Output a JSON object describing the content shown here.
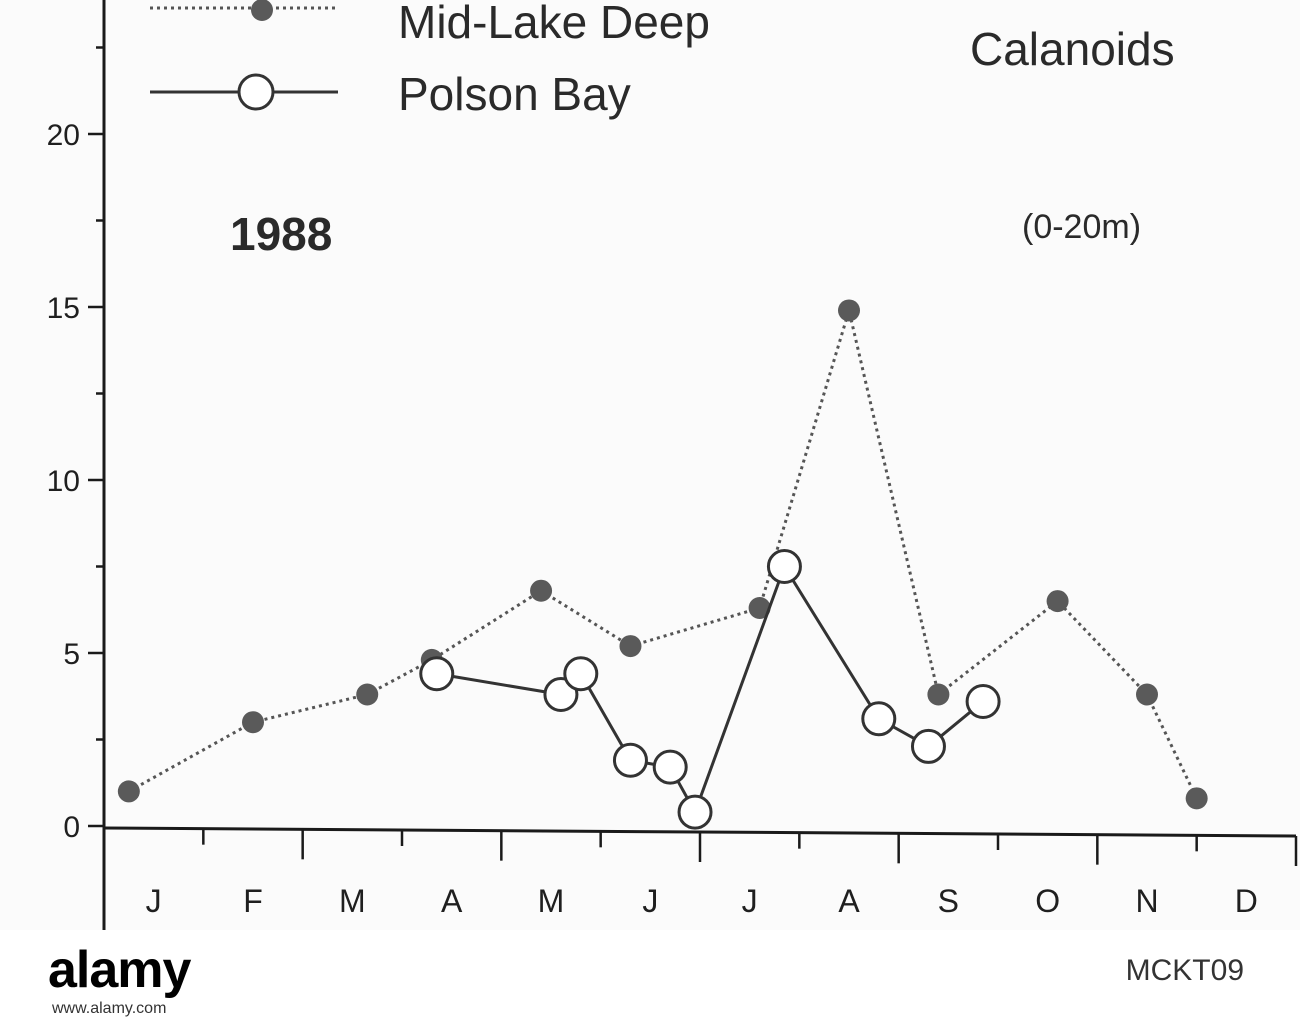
{
  "chart_data": {
    "type": "line",
    "title": "Calanoids",
    "annotations": [
      "1988",
      "(0-20m)"
    ],
    "x_tick_labels": [
      "J",
      "F",
      "M",
      "A",
      "M",
      "J",
      "J",
      "A",
      "S",
      "O",
      "N",
      "D"
    ],
    "xlim": [
      0,
      12
    ],
    "ylim": [
      0,
      23
    ],
    "y_ticks": [
      0,
      5,
      10,
      15,
      20
    ],
    "xlabel": "",
    "ylabel": "",
    "legend_position": "top-left",
    "series": [
      {
        "name": "Mid-Lake Deep",
        "style": "dotted",
        "marker": "filled-circle",
        "color": "#555555",
        "x": [
          0.25,
          1.5,
          2.65,
          3.3,
          4.4,
          5.3,
          6.6,
          7.5,
          8.4,
          9.6,
          10.5,
          11.0
        ],
        "y": [
          1.0,
          3.0,
          3.8,
          4.8,
          6.8,
          5.2,
          6.3,
          14.9,
          3.8,
          6.5,
          3.8,
          0.8
        ]
      },
      {
        "name": "Polson Bay",
        "style": "solid",
        "marker": "open-circle",
        "color": "#333333",
        "x": [
          3.35,
          4.6,
          4.8,
          5.3,
          5.7,
          5.95,
          6.85,
          7.8,
          8.3,
          8.85
        ],
        "y": [
          4.4,
          3.8,
          4.4,
          1.9,
          1.7,
          0.4,
          7.5,
          3.1,
          2.3,
          3.6
        ]
      }
    ]
  },
  "legend": {
    "items": [
      "Mid-Lake Deep",
      "Polson Bay"
    ]
  },
  "footer": {
    "brand": "alamy",
    "image_id": "MCKT09",
    "url": "www.alamy.com"
  }
}
